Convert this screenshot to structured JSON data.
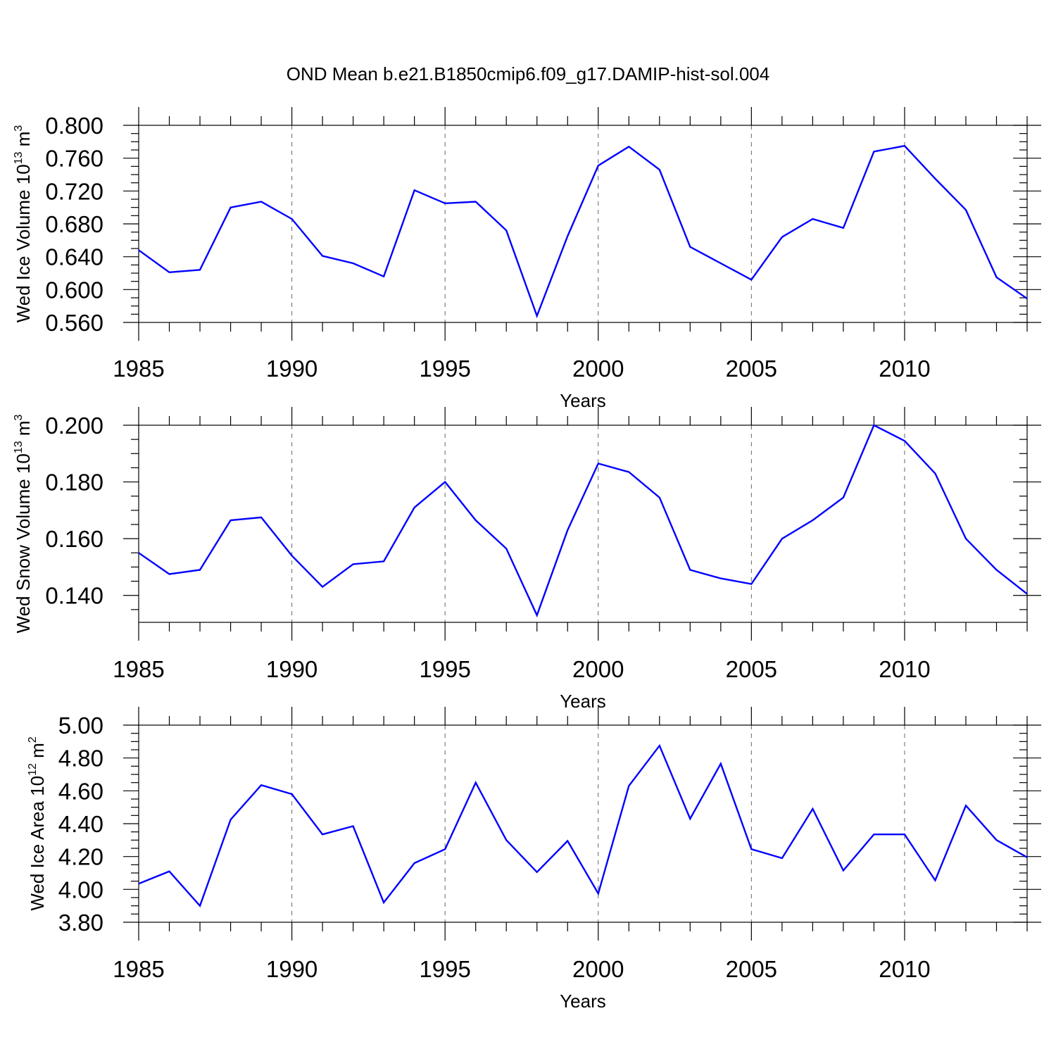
{
  "title": "OND Mean b.e21.B1850cmip6.f09_g17.DAMIP-hist-sol.004",
  "colors": {
    "line": "#0000ff",
    "axes": "#000000",
    "grid": "#666666"
  },
  "chart_data": [
    {
      "type": "line",
      "ylabel": {
        "text": "Wed Ice Volume 10",
        "exp": "13",
        "unit": "m",
        "unit_exp": "3"
      },
      "xlabel": "Years",
      "xlim": [
        1985,
        2014
      ],
      "ylim": [
        0.56,
        0.8
      ],
      "yticks": [
        "0.560",
        "0.600",
        "0.640",
        "0.680",
        "0.720",
        "0.760",
        "0.800"
      ],
      "xticks": [
        "1985",
        "1990",
        "1995",
        "2000",
        "2005",
        "2010"
      ],
      "grid_x": [
        1990,
        1995,
        2000,
        2005,
        2010
      ],
      "x": [
        1985,
        1986,
        1987,
        1988,
        1989,
        1990,
        1991,
        1992,
        1993,
        1994,
        1995,
        1996,
        1997,
        1998,
        1999,
        2000,
        2001,
        2002,
        2003,
        2004,
        2005,
        2006,
        2007,
        2008,
        2009,
        2010,
        2011,
        2012,
        2013,
        2014
      ],
      "values": [
        0.648,
        0.621,
        0.624,
        0.7,
        0.707,
        0.686,
        0.641,
        0.632,
        0.616,
        0.721,
        0.705,
        0.707,
        0.672,
        0.568,
        0.665,
        0.751,
        0.774,
        0.746,
        0.652,
        0.632,
        0.612,
        0.664,
        0.686,
        0.675,
        0.768,
        0.775,
        0.735,
        0.697,
        0.615,
        0.589
      ]
    },
    {
      "type": "line",
      "ylabel": {
        "text": "Wed Snow Volume 10",
        "exp": "13",
        "unit": "m",
        "unit_exp": "3"
      },
      "xlabel": "Years",
      "xlim": [
        1985,
        2014
      ],
      "ylim": [
        0.1305,
        0.2
      ],
      "yticks": [
        "0.140",
        "0.160",
        "0.180",
        "0.200"
      ],
      "xticks": [
        "1985",
        "1990",
        "1995",
        "2000",
        "2005",
        "2010"
      ],
      "grid_x": [
        1990,
        1995,
        2000,
        2005,
        2010
      ],
      "x": [
        1985,
        1986,
        1987,
        1988,
        1989,
        1990,
        1991,
        1992,
        1993,
        1994,
        1995,
        1996,
        1997,
        1998,
        1999,
        2000,
        2001,
        2002,
        2003,
        2004,
        2005,
        2006,
        2007,
        2008,
        2009,
        2010,
        2011,
        2012,
        2013,
        2014
      ],
      "values": [
        0.155,
        0.1475,
        0.149,
        0.1665,
        0.1675,
        0.154,
        0.143,
        0.151,
        0.152,
        0.171,
        0.18,
        0.1665,
        0.1565,
        0.133,
        0.163,
        0.1865,
        0.1835,
        0.1745,
        0.149,
        0.146,
        0.144,
        0.16,
        0.1665,
        0.1745,
        0.2,
        0.1945,
        0.183,
        0.16,
        0.149,
        0.1405
      ]
    },
    {
      "type": "line",
      "ylabel": {
        "text": "Wed Ice Area 10",
        "exp": "12",
        "unit": "m",
        "unit_exp": "2"
      },
      "xlabel": "Years",
      "xlim": [
        1985,
        2014
      ],
      "ylim": [
        3.8,
        5.0
      ],
      "yticks": [
        "3.80",
        "4.00",
        "4.20",
        "4.40",
        "4.60",
        "4.80",
        "5.00"
      ],
      "xticks": [
        "1985",
        "1990",
        "1995",
        "2000",
        "2005",
        "2010"
      ],
      "grid_x": [
        1990,
        1995,
        2000,
        2005,
        2010
      ],
      "x": [
        1985,
        1986,
        1987,
        1988,
        1989,
        1990,
        1991,
        1992,
        1993,
        1994,
        1995,
        1996,
        1997,
        1998,
        1999,
        2000,
        2001,
        2002,
        2003,
        2004,
        2005,
        2006,
        2007,
        2008,
        2009,
        2010,
        2011,
        2012,
        2013,
        2014
      ],
      "values": [
        4.035,
        4.11,
        3.9,
        4.425,
        4.635,
        4.58,
        4.335,
        4.385,
        3.92,
        4.16,
        4.245,
        4.65,
        4.3,
        4.105,
        4.295,
        3.975,
        4.63,
        4.875,
        4.43,
        4.765,
        4.245,
        4.19,
        4.49,
        4.115,
        4.335,
        4.335,
        4.055,
        4.51,
        4.3,
        4.195
      ]
    }
  ]
}
